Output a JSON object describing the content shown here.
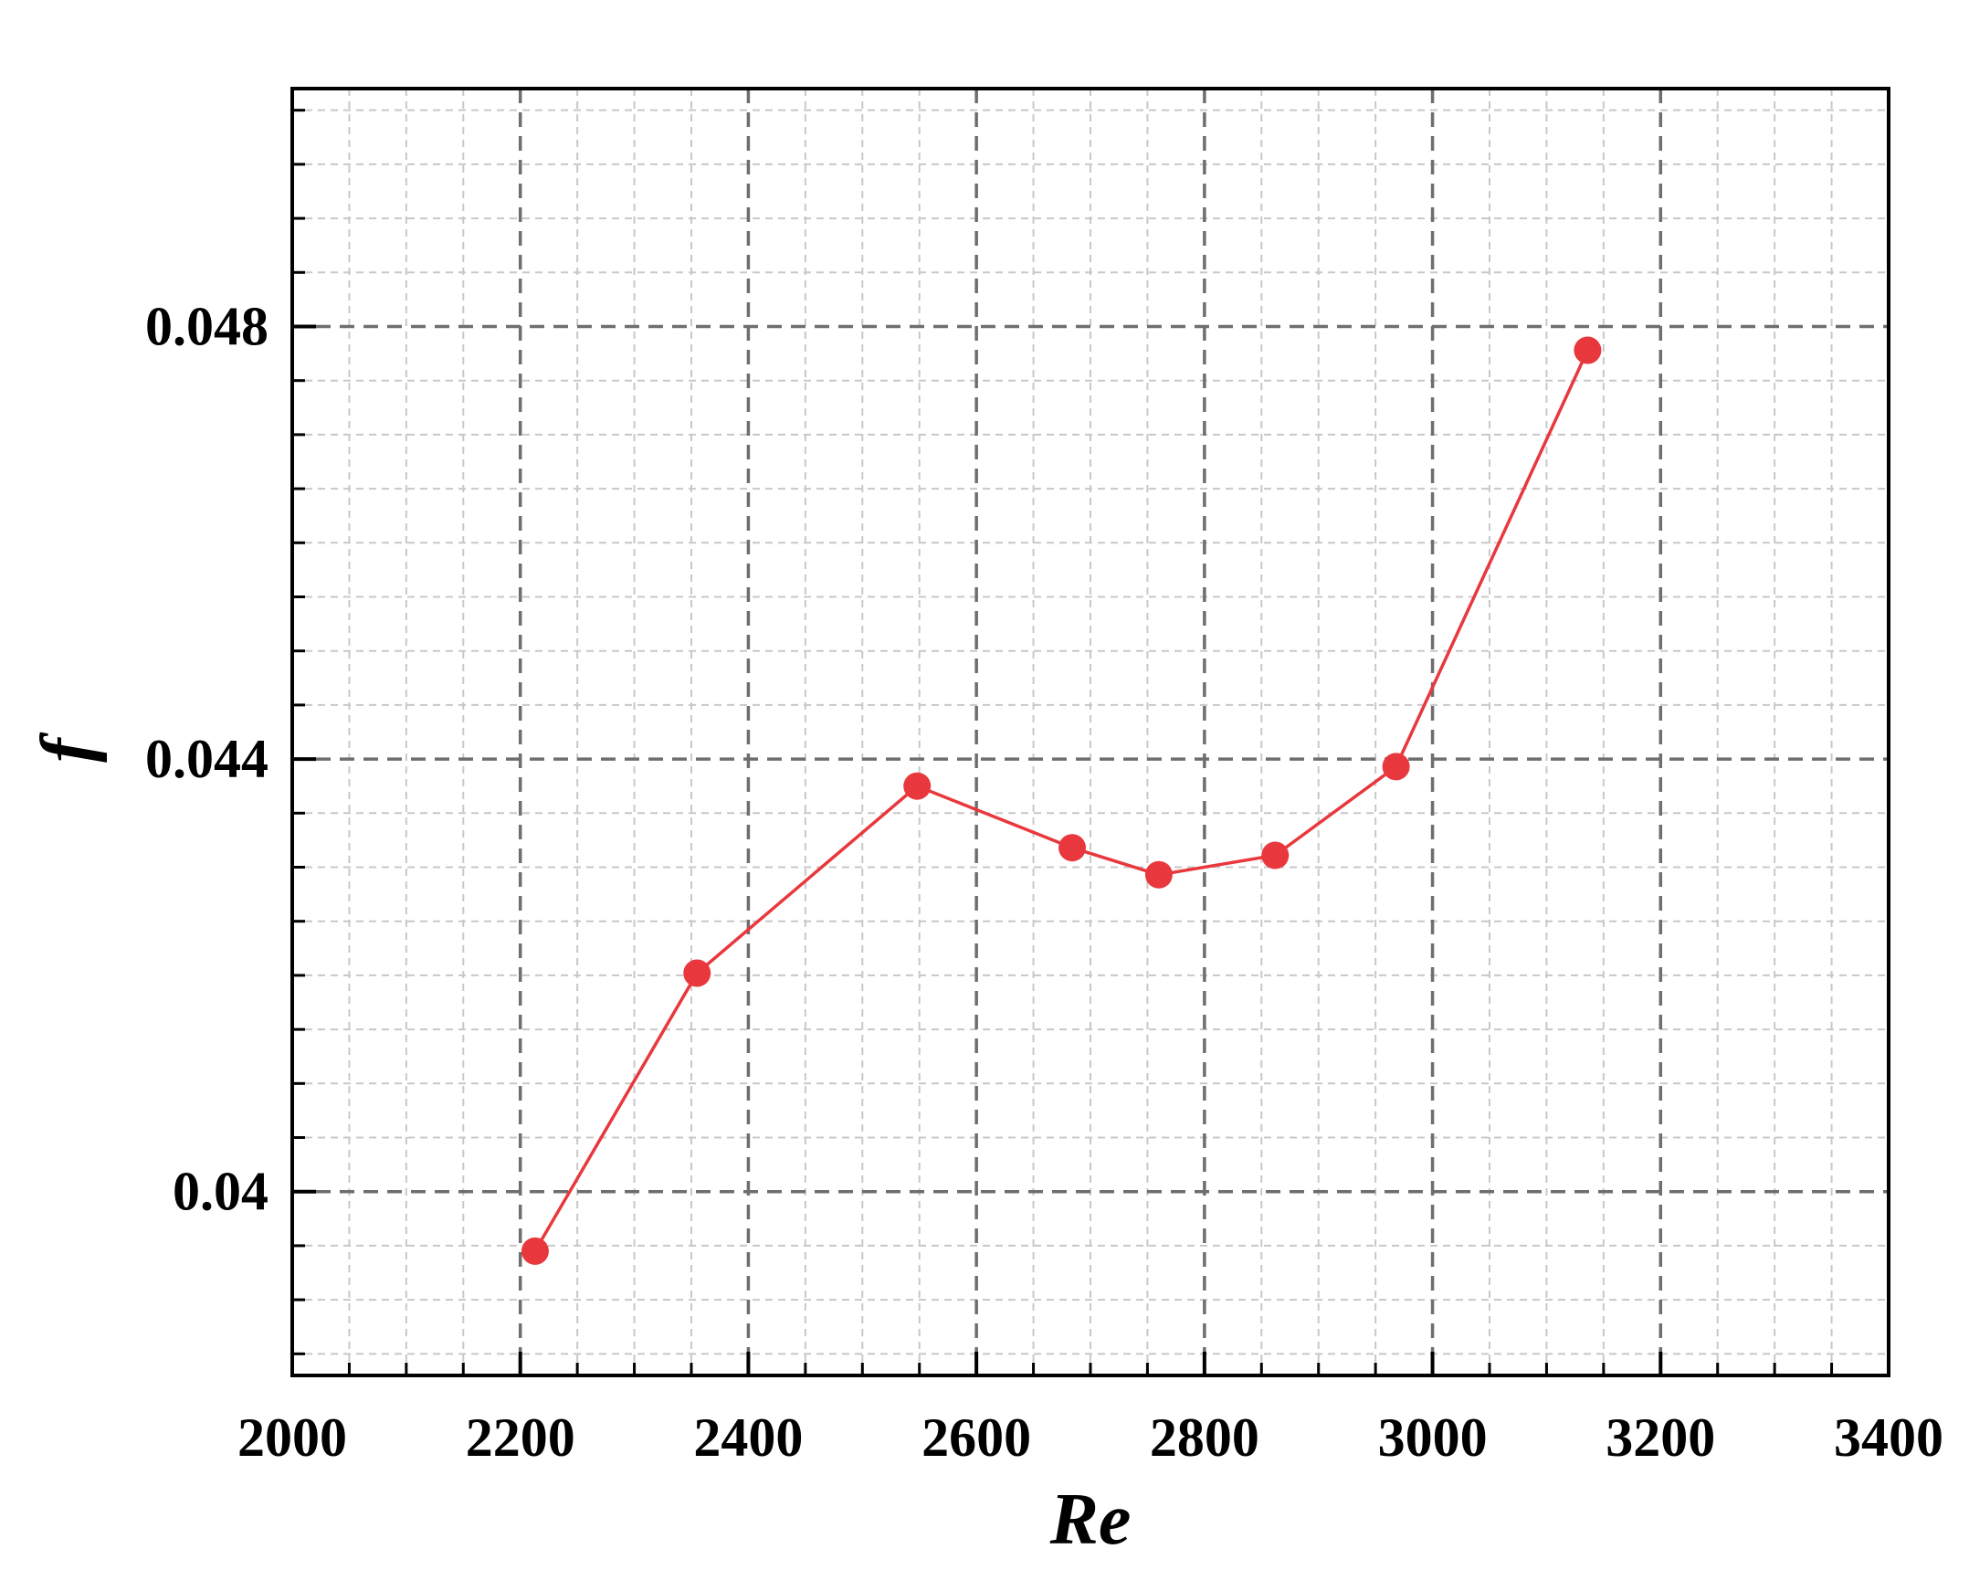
{
  "chart_data": {
    "type": "line",
    "xlabel": "Re",
    "ylabel": "f",
    "xlim": [
      2000,
      3400
    ],
    "ylim": [
      0.0383,
      0.0502
    ],
    "x_ticks": [
      2000,
      2200,
      2400,
      2600,
      2800,
      3000,
      3200,
      3400
    ],
    "x_tick_labels": [
      "2000",
      "2200",
      "2400",
      "2600",
      "2800",
      "3000",
      "3200",
      "3400"
    ],
    "y_ticks": [
      0.04,
      0.044,
      0.048
    ],
    "y_tick_labels": [
      "0.04",
      "0.044",
      "0.048"
    ],
    "grid": true,
    "series": [
      {
        "color": "#e8383d",
        "marker": "circle",
        "points": [
          {
            "x": 2213,
            "y": 0.03945
          },
          {
            "x": 2355,
            "y": 0.04202
          },
          {
            "x": 2548,
            "y": 0.04375
          },
          {
            "x": 2684,
            "y": 0.04318
          },
          {
            "x": 2760,
            "y": 0.04293
          },
          {
            "x": 2862,
            "y": 0.04311
          },
          {
            "x": 2968,
            "y": 0.04393
          },
          {
            "x": 3136,
            "y": 0.04778
          }
        ]
      }
    ]
  }
}
